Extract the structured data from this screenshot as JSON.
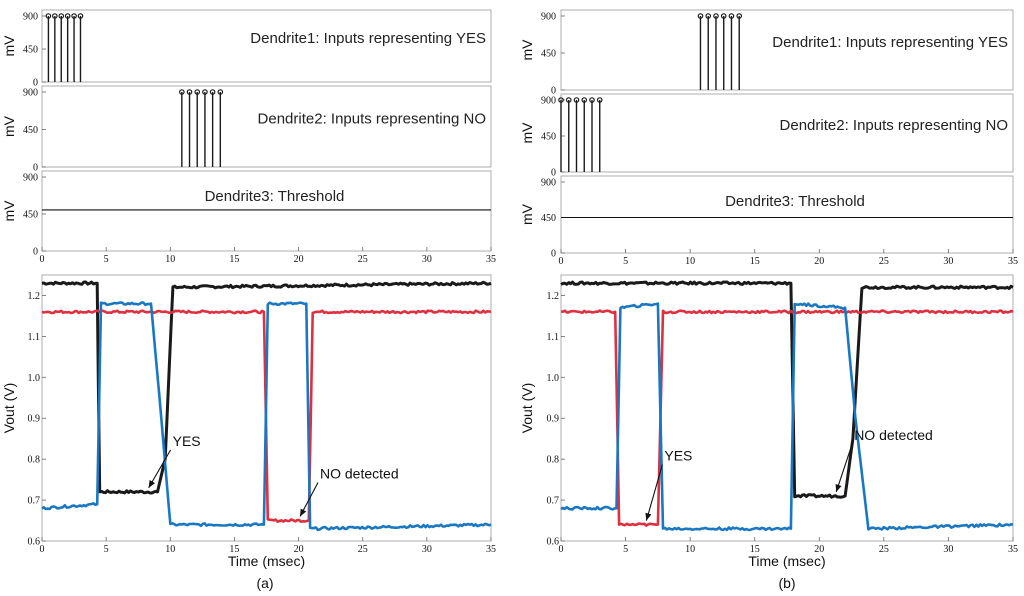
{
  "figure": {
    "label_a": "(a)",
    "label_b": "(b)"
  },
  "colors": {
    "black": "#1a1a1a",
    "red": "#e03040",
    "blue": "#1a78c2",
    "spike": "#1a1a1a"
  },
  "chart_data": [
    {
      "id": "a",
      "type": "line",
      "subpanels": [
        {
          "type": "stem",
          "ylabel": "mV",
          "ylim": [
            0,
            900
          ],
          "yticks": [
            0,
            450,
            900
          ],
          "xlim": [
            0,
            35
          ],
          "title": "Dendrite1: Inputs representing YES",
          "spikes_x": [
            0.5,
            1.0,
            1.5,
            2.0,
            2.5,
            3.0
          ],
          "spike_value": 900
        },
        {
          "type": "stem",
          "ylabel": "mV",
          "ylim": [
            0,
            900
          ],
          "yticks": [
            0,
            450,
            900
          ],
          "xlim": [
            0,
            35
          ],
          "title": "Dendrite2: Inputs representing NO",
          "spikes_x": [
            10.9,
            11.5,
            12.1,
            12.7,
            13.3,
            13.9
          ],
          "spike_value": 900
        },
        {
          "type": "hline",
          "ylabel": "mV",
          "ylim": [
            0,
            900
          ],
          "yticks": [
            0,
            450,
            900
          ],
          "xlim": [
            0,
            35
          ],
          "xticks": [
            0,
            5,
            10,
            15,
            20,
            25,
            30,
            35
          ],
          "title": "Dendrite3: Threshold",
          "value": 500
        }
      ],
      "main": {
        "ylabel": "Vout (V)",
        "xlabel": "Time (msec)",
        "xlim": [
          0,
          35
        ],
        "ylim": [
          0.6,
          1.25
        ],
        "xticks": [
          0,
          5,
          10,
          15,
          20,
          25,
          30,
          35
        ],
        "yticks": [
          0.6,
          0.7,
          0.8,
          0.9,
          1.0,
          1.1,
          1.2
        ],
        "series": [
          {
            "name": "black",
            "x": [
              0,
              4.3,
              4.5,
              9.0,
              9.6,
              10.2,
              35
            ],
            "y": [
              1.23,
              1.23,
              0.72,
              0.72,
              0.8,
              1.22,
              1.23
            ]
          },
          {
            "name": "red",
            "x": [
              0,
              17.3,
              17.6,
              20.8,
              21.1,
              35
            ],
            "y": [
              1.16,
              1.16,
              0.65,
              0.65,
              1.16,
              1.16
            ]
          },
          {
            "name": "blue",
            "x": [
              0,
              4.3,
              4.6,
              8.5,
              9.3,
              10.0,
              17.3,
              17.6,
              20.6,
              20.9,
              35
            ],
            "y": [
              0.68,
              0.69,
              1.18,
              1.18,
              0.9,
              0.64,
              0.64,
              1.18,
              1.18,
              0.63,
              0.64
            ]
          }
        ],
        "annotations": [
          {
            "text": "YES",
            "x": 8.0,
            "y": 0.72
          },
          {
            "text": "NO detected",
            "x": 19.8,
            "y": 0.65
          }
        ]
      }
    },
    {
      "id": "b",
      "type": "line",
      "subpanels": [
        {
          "type": "stem",
          "ylabel": "mV",
          "ylim": [
            0,
            900
          ],
          "yticks": [
            0,
            450,
            900
          ],
          "xlim": [
            0,
            35
          ],
          "title": "Dendrite1: Inputs representing YES",
          "spikes_x": [
            10.8,
            11.4,
            12.0,
            12.6,
            13.2,
            13.8
          ],
          "spike_value": 900
        },
        {
          "type": "stem",
          "ylabel": "mV",
          "ylim": [
            0,
            900
          ],
          "yticks": [
            0,
            450,
            900
          ],
          "xlim": [
            0,
            35
          ],
          "title": "Dendrite2: Inputs representing NO",
          "spikes_x": [
            0.0,
            0.6,
            1.2,
            1.8,
            2.4,
            3.0
          ],
          "spike_value": 900
        },
        {
          "type": "hline",
          "ylabel": "mV",
          "ylim": [
            0,
            900
          ],
          "yticks": [
            0,
            450,
            900
          ],
          "xlim": [
            0,
            35
          ],
          "xticks": [
            0,
            5,
            10,
            15,
            20,
            25,
            30,
            35
          ],
          "title": "Dendrite3: Threshold",
          "value": 450
        }
      ],
      "main": {
        "ylabel": "Vout (V)",
        "xlabel": "Time (msec)",
        "xlim": [
          0,
          35
        ],
        "ylim": [
          0.6,
          1.25
        ],
        "xticks": [
          0,
          5,
          10,
          15,
          20,
          25,
          30,
          35
        ],
        "yticks": [
          0.6,
          0.7,
          0.8,
          0.9,
          1.0,
          1.1,
          1.2
        ],
        "series": [
          {
            "name": "black",
            "x": [
              0,
              17.8,
              18.1,
              22.0,
              22.6,
              23.3,
              35
            ],
            "y": [
              1.23,
              1.23,
              0.71,
              0.71,
              0.85,
              1.22,
              1.22
            ]
          },
          {
            "name": "red",
            "x": [
              0,
              4.2,
              4.5,
              7.5,
              7.9,
              35
            ],
            "y": [
              1.16,
              1.16,
              0.64,
              0.64,
              1.16,
              1.16
            ]
          },
          {
            "name": "blue",
            "x": [
              0,
              4.3,
              4.6,
              7.5,
              7.9,
              17.8,
              18.1,
              22.0,
              22.8,
              23.8,
              35
            ],
            "y": [
              0.68,
              0.68,
              1.17,
              1.18,
              0.63,
              0.63,
              1.18,
              1.17,
              0.9,
              0.63,
              0.64
            ]
          }
        ],
        "annotations": [
          {
            "text": "YES",
            "x": 6.3,
            "y": 0.64
          },
          {
            "text": "NO detected",
            "x": 21.0,
            "y": 0.71
          }
        ]
      }
    }
  ]
}
